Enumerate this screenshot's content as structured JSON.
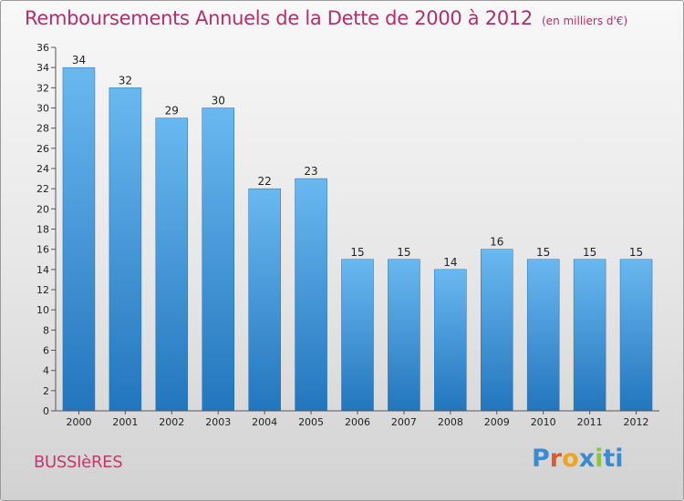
{
  "chart_data": {
    "type": "bar",
    "title": "Remboursements Annuels de la Dette de 2000 à 2012",
    "unit": "(en milliers d'€)",
    "categories": [
      "2000",
      "2001",
      "2002",
      "2003",
      "2004",
      "2005",
      "2006",
      "2007",
      "2008",
      "2009",
      "2010",
      "2011",
      "2012"
    ],
    "values": [
      34,
      32,
      29,
      30,
      22,
      23,
      15,
      15,
      14,
      16,
      15,
      15,
      15
    ],
    "ylim": [
      0,
      36
    ],
    "yticks": [
      0,
      2,
      4,
      6,
      8,
      10,
      12,
      14,
      16,
      18,
      20,
      22,
      24,
      26,
      28,
      30,
      32,
      34,
      36
    ],
    "xlabel": "",
    "ylabel": "",
    "grid": false,
    "bar_color": "#3d8fd4"
  },
  "commune": "BUSSIèRES",
  "logo": {
    "letters": [
      "P",
      "r",
      "o",
      "x",
      "i",
      "t",
      "i"
    ],
    "colors": [
      "#3a8bd1",
      "#e05a2b",
      "#f0a31c",
      "#3a8bd1",
      "#8cc63f",
      "#3a8bd1",
      "#3a8bd1"
    ]
  },
  "colors": {
    "title": "#b0306b",
    "commune": "#c2396e"
  }
}
